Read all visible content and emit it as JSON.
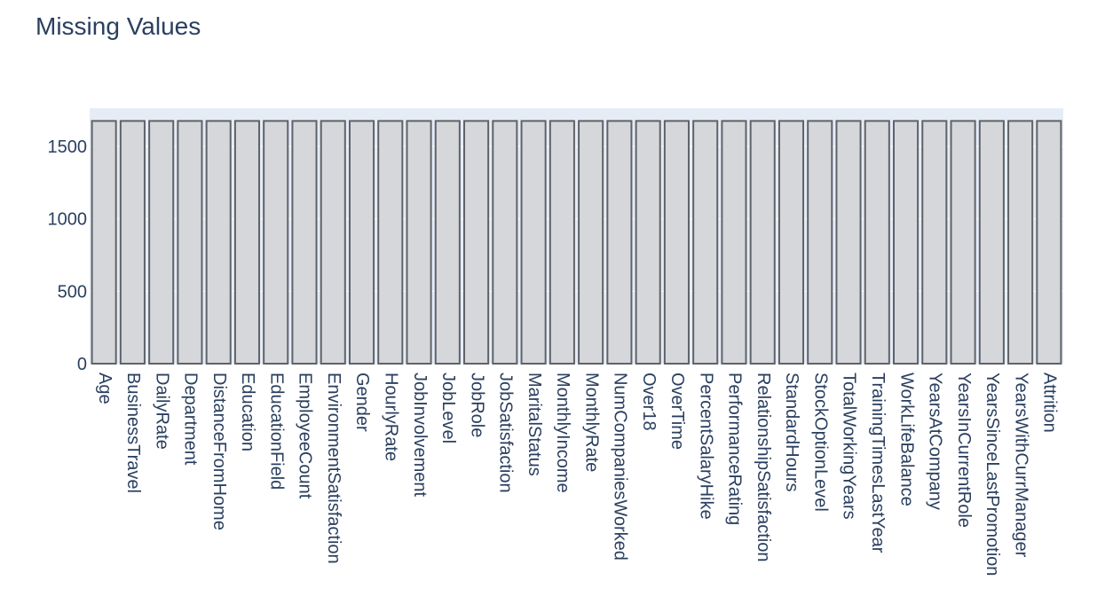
{
  "chart_data": {
    "type": "bar",
    "title": "Missing Values",
    "xlabel": "",
    "ylabel": "",
    "categories": [
      "Age",
      "BusinessTravel",
      "DailyRate",
      "Department",
      "DistanceFromHome",
      "Education",
      "EducationField",
      "EmployeeCount",
      "EnvironmentSatisfaction",
      "Gender",
      "HourlyRate",
      "JobInvolvement",
      "JobLevel",
      "JobRole",
      "JobSatisfaction",
      "MaritalStatus",
      "MonthlyIncome",
      "MonthlyRate",
      "NumCompaniesWorked",
      "Over18",
      "OverTime",
      "PercentSalaryHike",
      "PerformanceRating",
      "RelationshipSatisfaction",
      "StandardHours",
      "StockOptionLevel",
      "TotalWorkingYears",
      "TrainingTimesLastYear",
      "WorkLifeBalance",
      "YearsAtCompany",
      "YearsInCurrentRole",
      "YearsSinceLastPromotion",
      "YearsWithCurrManager",
      "Attrition"
    ],
    "values": [
      1676,
      1676,
      1676,
      1676,
      1676,
      1676,
      1676,
      1676,
      1676,
      1676,
      1676,
      1676,
      1676,
      1676,
      1676,
      1676,
      1676,
      1676,
      1676,
      1676,
      1676,
      1676,
      1676,
      1676,
      1676,
      1676,
      1676,
      1676,
      1676,
      1676,
      1676,
      1676,
      1676,
      1676
    ],
    "yticks": [
      "0",
      "500",
      "1000",
      "1500"
    ],
    "ylim": [
      0,
      1764
    ],
    "grid": true,
    "legend": "none",
    "colors": {
      "bar_fill": "#d6d7da",
      "bar_edge": "#5f6369",
      "plot_bg": "#e5ecf6",
      "grid": "#ffffff",
      "text": "#2a3f5f"
    }
  }
}
